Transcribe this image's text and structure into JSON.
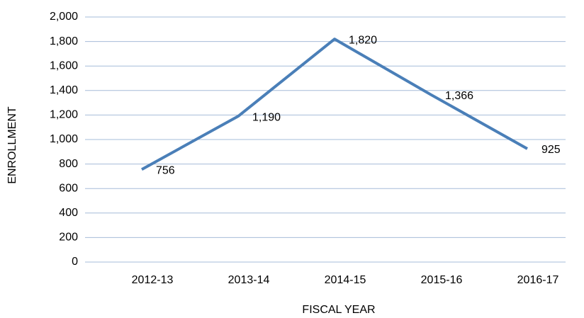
{
  "chart_data": {
    "type": "line",
    "x_label": "FISCAL YEAR",
    "y_label": "ENROLLMENT",
    "categories": [
      "2012-13",
      "2013-14",
      "2014-15",
      "2015-16",
      "2016-17"
    ],
    "values": [
      756,
      1190,
      1820,
      1366,
      925
    ],
    "value_labels": [
      "756",
      "1,190",
      "1,820",
      "1,366",
      "925"
    ],
    "color": "#4a7fb8",
    "ylim": [
      0,
      2000
    ],
    "yticks": [
      0,
      200,
      400,
      600,
      800,
      {
        "value": 1000,
        "label": "1,000"
      },
      {
        "value": 1200,
        "label": "1,200"
      },
      {
        "value": 1400,
        "label": "1,400"
      },
      {
        "value": 1600,
        "label": "1,600"
      },
      {
        "value": 1800,
        "label": "1,800"
      },
      {
        "value": 2000,
        "label": "2,000"
      }
    ],
    "grid": true
  }
}
